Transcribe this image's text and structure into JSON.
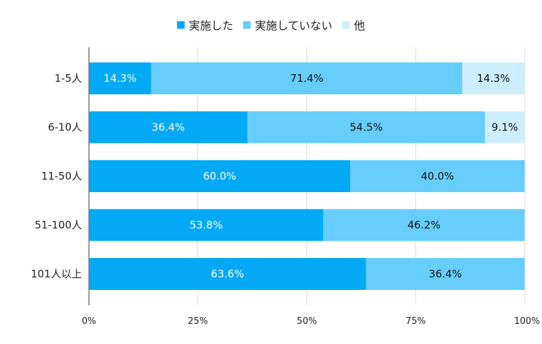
{
  "chart_data": {
    "type": "bar",
    "orientation": "horizontal",
    "stacked": true,
    "percent": true,
    "categories": [
      "1-5人",
      "6-10人",
      "11-50人",
      "51-100人",
      "101人以上"
    ],
    "series": [
      {
        "name": "実施した",
        "color": "#03a9f4",
        "label_color": "#ffffff",
        "values": [
          14.3,
          36.4,
          60.0,
          53.8,
          63.6
        ],
        "labels": [
          "14.3%",
          "36.4%",
          "60.0%",
          "53.8%",
          "63.6%"
        ]
      },
      {
        "name": "実施していない",
        "color": "#66cdfc",
        "label_color": "#111111",
        "values": [
          71.4,
          54.5,
          40.0,
          46.2,
          36.4
        ],
        "labels": [
          "71.4%",
          "54.5%",
          "40.0%",
          "46.2%",
          "36.4%"
        ]
      },
      {
        "name": "他",
        "color": "#cdeefd",
        "label_color": "#111111",
        "values": [
          14.3,
          9.1,
          0,
          0,
          0
        ],
        "labels": [
          "14.3%",
          "9.1%",
          "",
          "",
          ""
        ]
      }
    ],
    "xlim": [
      0,
      100
    ],
    "xticks": [
      0,
      25,
      50,
      75,
      100
    ],
    "xtick_labels": [
      "0%",
      "25%",
      "50%",
      "75%",
      "100%"
    ],
    "grid": true,
    "gridline_color": "#d9d9d9",
    "legend_position": "top"
  }
}
